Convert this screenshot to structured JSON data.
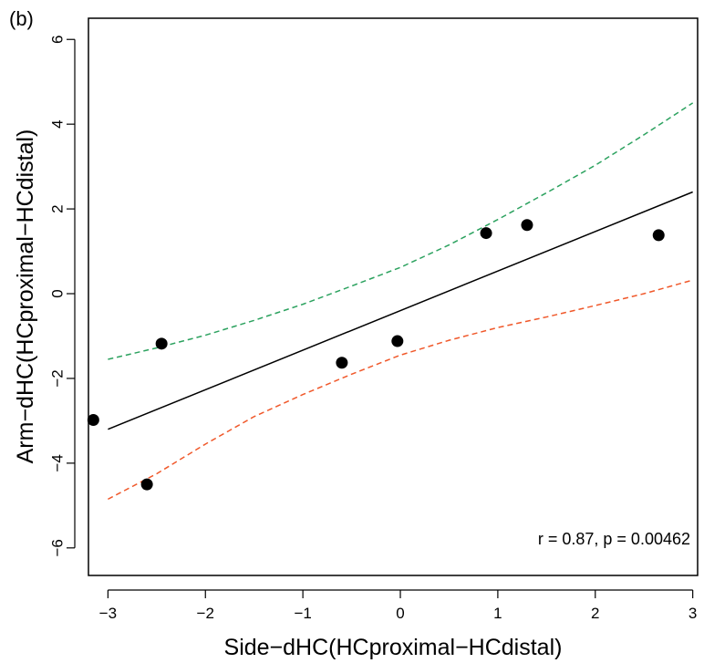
{
  "chart_data": {
    "type": "scatter",
    "panel_label": "(b)",
    "title": "",
    "xlabel": "Side−dHC(HCproximal−HCdistal)",
    "ylabel": "Arm−dHC(HCproximal−HCdistal)",
    "xlim": [
      -3.2,
      3.05
    ],
    "ylim": [
      -6.65,
      6.5
    ],
    "x_ticks": [
      -3,
      -2,
      -1,
      0,
      1,
      2,
      3
    ],
    "x_tick_labels": [
      "−3",
      "−2",
      "−1",
      "0",
      "1",
      "2",
      "3"
    ],
    "y_ticks": [
      -6,
      -4,
      -2,
      0,
      2,
      4,
      6
    ],
    "y_tick_labels": [
      "−6",
      "−4",
      "−2",
      "0",
      "2",
      "4",
      "6"
    ],
    "grid": false,
    "annotation": "r = 0.87, p = 0.00462",
    "points": [
      {
        "x": -3.15,
        "y": -2.98
      },
      {
        "x": -2.6,
        "y": -4.5
      },
      {
        "x": -2.45,
        "y": -1.18
      },
      {
        "x": -0.6,
        "y": -1.63
      },
      {
        "x": -0.03,
        "y": -1.12
      },
      {
        "x": 0.88,
        "y": 1.43
      },
      {
        "x": 1.3,
        "y": 1.62
      },
      {
        "x": 2.65,
        "y": 1.38
      }
    ],
    "fit_line": {
      "color": "#000000",
      "points": [
        [
          -3.0,
          -3.2
        ],
        [
          3.0,
          2.4
        ]
      ]
    },
    "upper_band": {
      "color": "#2ca25f",
      "points": [
        [
          -3.0,
          -1.55
        ],
        [
          -2.5,
          -1.28
        ],
        [
          -2.0,
          -0.98
        ],
        [
          -1.5,
          -0.63
        ],
        [
          -1.0,
          -0.25
        ],
        [
          -0.5,
          0.18
        ],
        [
          0.0,
          0.62
        ],
        [
          0.5,
          1.15
        ],
        [
          1.0,
          1.75
        ],
        [
          1.5,
          2.38
        ],
        [
          2.0,
          3.03
        ],
        [
          2.5,
          3.75
        ],
        [
          3.0,
          4.5
        ]
      ]
    },
    "lower_band": {
      "color": "#f0582a",
      "points": [
        [
          -3.0,
          -4.85
        ],
        [
          -2.5,
          -4.25
        ],
        [
          -2.0,
          -3.55
        ],
        [
          -1.5,
          -2.9
        ],
        [
          -1.0,
          -2.38
        ],
        [
          -0.5,
          -1.9
        ],
        [
          0.0,
          -1.45
        ],
        [
          0.5,
          -1.1
        ],
        [
          1.0,
          -0.8
        ],
        [
          1.5,
          -0.55
        ],
        [
          2.0,
          -0.28
        ],
        [
          2.5,
          0.0
        ],
        [
          3.0,
          0.32
        ]
      ]
    }
  }
}
